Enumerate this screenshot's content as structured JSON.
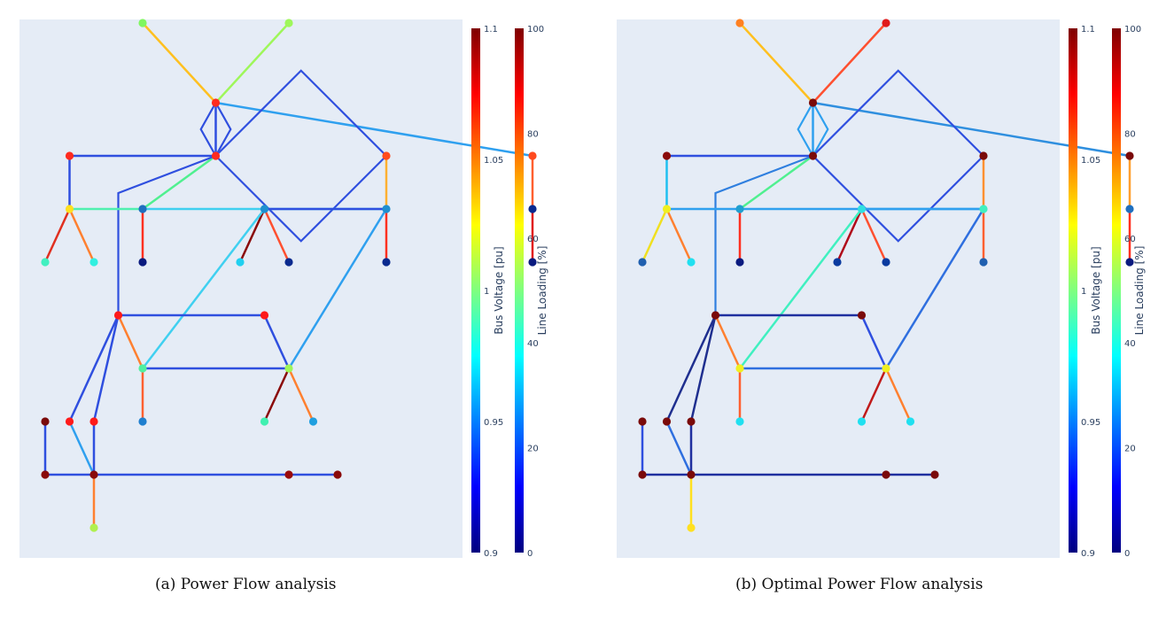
{
  "panels": [
    {
      "caption": "(a) Power Flow analysis",
      "nodes": [
        {
          "id": 1,
          "x": 2,
          "y": 10,
          "c": "#7ff75f"
        },
        {
          "id": 2,
          "x": 5,
          "y": 10,
          "c": "#9ef75a"
        },
        {
          "id": 3,
          "x": 3.5,
          "y": 8.5,
          "c": "#ff2a1f"
        },
        {
          "id": 4,
          "x": 3.5,
          "y": 7.5,
          "c": "#ff2a1f"
        },
        {
          "id": 5,
          "x": 0.5,
          "y": 7.5,
          "c": "#ff2a1f"
        },
        {
          "id": 6,
          "x": 7,
          "y": 7.5,
          "c": "#ff4a1f"
        },
        {
          "id": 7,
          "x": 10,
          "y": 7.5,
          "c": "#ff4a1f"
        },
        {
          "id": 8,
          "x": 0.5,
          "y": 6.5,
          "c": "#ffe020"
        },
        {
          "id": 9,
          "x": 2,
          "y": 6.5,
          "c": "#1f6fbf"
        },
        {
          "id": 10,
          "x": 4.5,
          "y": 6.5,
          "c": "#1f8fcf"
        },
        {
          "id": 11,
          "x": 7,
          "y": 6.5,
          "c": "#1f8fcf"
        },
        {
          "id": 12,
          "x": 10,
          "y": 6.5,
          "c": "#0a2a8f"
        },
        {
          "id": 13,
          "x": 0,
          "y": 5.5,
          "c": "#40f0c0"
        },
        {
          "id": 14,
          "x": 1,
          "y": 5.5,
          "c": "#30f0e0"
        },
        {
          "id": 15,
          "x": 2,
          "y": 5.5,
          "c": "#0a1a7f"
        },
        {
          "id": 16,
          "x": 4,
          "y": 5.5,
          "c": "#20d0f0"
        },
        {
          "id": 17,
          "x": 5,
          "y": 5.5,
          "c": "#0a2a8f"
        },
        {
          "id": 18,
          "x": 7,
          "y": 5.5,
          "c": "#0a2a8f"
        },
        {
          "id": 19,
          "x": 10,
          "y": 5.5,
          "c": "#0a1a7f"
        },
        {
          "id": 20,
          "x": 1.5,
          "y": 4.5,
          "c": "#ff1a1a"
        },
        {
          "id": 21,
          "x": 4.5,
          "y": 4.5,
          "c": "#ff1a1a"
        },
        {
          "id": 22,
          "x": 2,
          "y": 3.5,
          "c": "#50f0a0"
        },
        {
          "id": 23,
          "x": 5,
          "y": 3.5,
          "c": "#9ef75a"
        },
        {
          "id": 24,
          "x": 0,
          "y": 2.5,
          "c": "#7a0a0a"
        },
        {
          "id": 25,
          "x": 0.5,
          "y": 2.5,
          "c": "#ff1a1a"
        },
        {
          "id": 26,
          "x": 1,
          "y": 2.5,
          "c": "#ff1a1a"
        },
        {
          "id": 27,
          "x": 2,
          "y": 2.5,
          "c": "#1f7fcf"
        },
        {
          "id": 28,
          "x": 4.5,
          "y": 2.5,
          "c": "#40f0b0"
        },
        {
          "id": 29,
          "x": 5.5,
          "y": 2.5,
          "c": "#1f9fdf"
        },
        {
          "id": 30,
          "x": 0,
          "y": 1.5,
          "c": "#8a0a0a"
        },
        {
          "id": 31,
          "x": 1,
          "y": 1.5,
          "c": "#8a0a0a"
        },
        {
          "id": 32,
          "x": 5,
          "y": 1.5,
          "c": "#9a0a0a"
        },
        {
          "id": 33,
          "x": 6,
          "y": 1.5,
          "c": "#8a0a0a"
        },
        {
          "id": 34,
          "x": 1,
          "y": 0.5,
          "c": "#b0f050"
        }
      ],
      "edges": [
        {
          "a": 1,
          "b": 3,
          "c": "#ffc020"
        },
        {
          "a": 2,
          "b": 3,
          "c": "#9ef75a"
        },
        {
          "a": 3,
          "b": 4,
          "c": "#2f4fdf"
        },
        {
          "a": 3,
          "b": 4,
          "c": "#2f4fdf",
          "bend": -0.28
        },
        {
          "a": 3,
          "b": 4,
          "c": "#2f4fdf",
          "bend": 0.28
        },
        {
          "a": 3,
          "b": 7,
          "c": "#2fa0ef"
        },
        {
          "a": 5,
          "b": 4,
          "c": "#2f4fdf"
        },
        {
          "a": 4,
          "b": 6,
          "c": "#2f4fdf",
          "bend": 0.5
        },
        {
          "a": 4,
          "b": 6,
          "c": "#2f4fdf",
          "bend": -0.5
        },
        {
          "a": 4,
          "b": 9,
          "c": "#50f090"
        },
        {
          "a": 4,
          "b": 20,
          "c": "#2f4fdf",
          "via": [
            1.5,
            6.8
          ]
        },
        {
          "a": 6,
          "b": 11,
          "c": "#ffb030"
        },
        {
          "a": 7,
          "b": 12,
          "c": "#ff6030"
        },
        {
          "a": 5,
          "b": 8,
          "c": "#2f4fdf"
        },
        {
          "a": 8,
          "b": 9,
          "c": "#50f0b0"
        },
        {
          "a": 9,
          "b": 11,
          "c": "#40d0f0"
        },
        {
          "a": 10,
          "b": 11,
          "c": "#2f4fdf"
        },
        {
          "a": 8,
          "b": 13,
          "c": "#e03020"
        },
        {
          "a": 8,
          "b": 14,
          "c": "#ff8030"
        },
        {
          "a": 9,
          "b": 15,
          "c": "#ff3020"
        },
        {
          "a": 10,
          "b": 16,
          "c": "#8a0a0a"
        },
        {
          "a": 10,
          "b": 17,
          "c": "#ff5030"
        },
        {
          "a": 11,
          "b": 18,
          "c": "#ff3020"
        },
        {
          "a": 12,
          "b": 19,
          "c": "#e01a1a"
        },
        {
          "a": 10,
          "b": 22,
          "c": "#40d0f0"
        },
        {
          "a": 11,
          "b": 23,
          "c": "#2fa0ef"
        },
        {
          "a": 20,
          "b": 21,
          "c": "#2f4fdf"
        },
        {
          "a": 21,
          "b": 23,
          "c": "#2f4fdf"
        },
        {
          "a": 20,
          "b": 22,
          "c": "#ff8030"
        },
        {
          "a": 22,
          "b": 23,
          "c": "#2f4fdf"
        },
        {
          "a": 22,
          "b": 27,
          "c": "#ff6030"
        },
        {
          "a": 23,
          "b": 28,
          "c": "#8a0a0a"
        },
        {
          "a": 23,
          "b": 29,
          "c": "#ff8030"
        },
        {
          "a": 20,
          "b": 25,
          "c": "#2f4fdf"
        },
        {
          "a": 20,
          "b": 26,
          "c": "#2f4fdf"
        },
        {
          "a": 24,
          "b": 30,
          "c": "#2f4fdf"
        },
        {
          "a": 25,
          "b": 31,
          "c": "#2fa0ef"
        },
        {
          "a": 26,
          "b": 31,
          "c": "#2f4fdf"
        },
        {
          "a": 30,
          "b": 33,
          "c": "#2f4fdf"
        },
        {
          "a": 31,
          "b": 34,
          "c": "#ff8030"
        }
      ]
    },
    {
      "caption": "(b) Optimal Power Flow analysis",
      "nodes": [
        {
          "id": 1,
          "x": 2,
          "y": 10,
          "c": "#ff8020"
        },
        {
          "id": 2,
          "x": 5,
          "y": 10,
          "c": "#e01a1a"
        },
        {
          "id": 3,
          "x": 3.5,
          "y": 8.5,
          "c": "#7a0a0a"
        },
        {
          "id": 4,
          "x": 3.5,
          "y": 7.5,
          "c": "#7a0a0a"
        },
        {
          "id": 5,
          "x": 0.5,
          "y": 7.5,
          "c": "#8a0a0a"
        },
        {
          "id": 6,
          "x": 7,
          "y": 7.5,
          "c": "#7a0a0a"
        },
        {
          "id": 7,
          "x": 10,
          "y": 7.5,
          "c": "#7a0a0a"
        },
        {
          "id": 8,
          "x": 0.5,
          "y": 6.5,
          "c": "#f0f020"
        },
        {
          "id": 9,
          "x": 2,
          "y": 6.5,
          "c": "#1f9fcf"
        },
        {
          "id": 10,
          "x": 4.5,
          "y": 6.5,
          "c": "#30e0e0"
        },
        {
          "id": 11,
          "x": 7,
          "y": 6.5,
          "c": "#40f0c0"
        },
        {
          "id": 12,
          "x": 10,
          "y": 6.5,
          "c": "#1f6fbf"
        },
        {
          "id": 13,
          "x": 0,
          "y": 5.5,
          "c": "#1f5faf"
        },
        {
          "id": 14,
          "x": 1,
          "y": 5.5,
          "c": "#20e0f0"
        },
        {
          "id": 15,
          "x": 2,
          "y": 5.5,
          "c": "#0a1a7f"
        },
        {
          "id": 16,
          "x": 4,
          "y": 5.5,
          "c": "#0a3a9f"
        },
        {
          "id": 17,
          "x": 5,
          "y": 5.5,
          "c": "#0a3a9f"
        },
        {
          "id": 18,
          "x": 7,
          "y": 5.5,
          "c": "#1f5faf"
        },
        {
          "id": 19,
          "x": 10,
          "y": 5.5,
          "c": "#0a1a7f"
        },
        {
          "id": 20,
          "x": 1.5,
          "y": 4.5,
          "c": "#7a0a0a"
        },
        {
          "id": 21,
          "x": 4.5,
          "y": 4.5,
          "c": "#7a0a0a"
        },
        {
          "id": 22,
          "x": 2,
          "y": 3.5,
          "c": "#f0f020"
        },
        {
          "id": 23,
          "x": 5,
          "y": 3.5,
          "c": "#f0f020"
        },
        {
          "id": 24,
          "x": 0,
          "y": 2.5,
          "c": "#7a0a0a"
        },
        {
          "id": 25,
          "x": 0.5,
          "y": 2.5,
          "c": "#7a0a0a"
        },
        {
          "id": 26,
          "x": 1,
          "y": 2.5,
          "c": "#7a0a0a"
        },
        {
          "id": 27,
          "x": 2,
          "y": 2.5,
          "c": "#20e0f0"
        },
        {
          "id": 28,
          "x": 4.5,
          "y": 2.5,
          "c": "#20e0f0"
        },
        {
          "id": 29,
          "x": 5.5,
          "y": 2.5,
          "c": "#20e0f0"
        },
        {
          "id": 30,
          "x": 0,
          "y": 1.5,
          "c": "#7a0a0a"
        },
        {
          "id": 31,
          "x": 1,
          "y": 1.5,
          "c": "#7a0a0a"
        },
        {
          "id": 32,
          "x": 5,
          "y": 1.5,
          "c": "#7a0a0a"
        },
        {
          "id": 33,
          "x": 6,
          "y": 1.5,
          "c": "#7a0a0a"
        },
        {
          "id": 34,
          "x": 1,
          "y": 0.5,
          "c": "#ffe020"
        }
      ],
      "edges": [
        {
          "a": 1,
          "b": 3,
          "c": "#ffc020"
        },
        {
          "a": 2,
          "b": 3,
          "c": "#ff5030"
        },
        {
          "a": 3,
          "b": 4,
          "c": "#2fa0ef"
        },
        {
          "a": 3,
          "b": 4,
          "c": "#2fa0ef",
          "bend": -0.28
        },
        {
          "a": 3,
          "b": 4,
          "c": "#2fa0ef",
          "bend": 0.28
        },
        {
          "a": 3,
          "b": 7,
          "c": "#2f8fdf"
        },
        {
          "a": 5,
          "b": 4,
          "c": "#2f4fdf"
        },
        {
          "a": 4,
          "b": 6,
          "c": "#2f4fdf",
          "bend": 0.5
        },
        {
          "a": 4,
          "b": 6,
          "c": "#2f4fdf",
          "bend": -0.5
        },
        {
          "a": 4,
          "b": 9,
          "c": "#50f090"
        },
        {
          "a": 4,
          "b": 20,
          "c": "#2f7fdf",
          "via": [
            1.5,
            6.8
          ]
        },
        {
          "a": 6,
          "b": 11,
          "c": "#ff9030"
        },
        {
          "a": 7,
          "b": 12,
          "c": "#ffa030"
        },
        {
          "a": 5,
          "b": 8,
          "c": "#20c0f0"
        },
        {
          "a": 8,
          "b": 9,
          "c": "#2fa0ef"
        },
        {
          "a": 9,
          "b": 11,
          "c": "#2fa0ef"
        },
        {
          "a": 10,
          "b": 11,
          "c": "#2fa0ef"
        },
        {
          "a": 8,
          "b": 13,
          "c": "#f0e020"
        },
        {
          "a": 8,
          "b": 14,
          "c": "#ff8030"
        },
        {
          "a": 9,
          "b": 15,
          "c": "#ff3020"
        },
        {
          "a": 10,
          "b": 16,
          "c": "#b00a1a"
        },
        {
          "a": 10,
          "b": 17,
          "c": "#ff5030"
        },
        {
          "a": 11,
          "b": 18,
          "c": "#ff6030"
        },
        {
          "a": 12,
          "b": 19,
          "c": "#ff3020"
        },
        {
          "a": 10,
          "b": 22,
          "c": "#40f0c0"
        },
        {
          "a": 11,
          "b": 23,
          "c": "#2f6fdf"
        },
        {
          "a": 20,
          "b": 21,
          "c": "#1f2f9f"
        },
        {
          "a": 21,
          "b": 23,
          "c": "#2f4fdf"
        },
        {
          "a": 20,
          "b": 22,
          "c": "#ff8030"
        },
        {
          "a": 22,
          "b": 23,
          "c": "#2f6fdf"
        },
        {
          "a": 22,
          "b": 27,
          "c": "#ff6030"
        },
        {
          "a": 23,
          "b": 28,
          "c": "#c01a1a"
        },
        {
          "a": 23,
          "b": 29,
          "c": "#ff8030"
        },
        {
          "a": 20,
          "b": 25,
          "c": "#1f2f8f"
        },
        {
          "a": 20,
          "b": 26,
          "c": "#1f2f8f"
        },
        {
          "a": 24,
          "b": 30,
          "c": "#2f4fdf"
        },
        {
          "a": 25,
          "b": 31,
          "c": "#2f6fdf"
        },
        {
          "a": 26,
          "b": 31,
          "c": "#1f2f9f"
        },
        {
          "a": 30,
          "b": 33,
          "c": "#1f2f9f"
        },
        {
          "a": 31,
          "b": 34,
          "c": "#ffe020"
        }
      ]
    }
  ],
  "colorbars": {
    "voltage": {
      "title": "Bus Voltage [pu]",
      "ticks": [
        "1.1",
        "1.05",
        "1",
        "0.95",
        "0.9"
      ],
      "range": [
        0.9,
        1.1
      ]
    },
    "loading": {
      "title": "Line Loading [%]",
      "ticks": [
        "100",
        "80",
        "60",
        "40",
        "20",
        "0"
      ],
      "range": [
        0,
        100
      ]
    }
  },
  "jet_colors": [
    "#00007f",
    "#0000ff",
    "#007fff",
    "#00ffff",
    "#7fff7f",
    "#ffff00",
    "#ff7f00",
    "#ff0000",
    "#7f0000"
  ]
}
